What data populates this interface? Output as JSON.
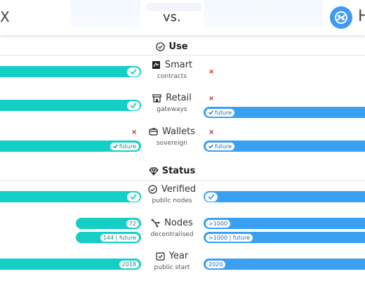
{
  "header": {
    "left_name": "X",
    "vs": "vs.",
    "right_name": "H"
  },
  "sections": {
    "use": "Use",
    "status": "Status"
  },
  "rows": {
    "smart": {
      "title": "Smart",
      "sub": "contracts"
    },
    "retail": {
      "title": "Retail",
      "sub": "gateways",
      "right_pill": "future"
    },
    "wallets": {
      "title": "Wallets",
      "sub": "sovereign",
      "left_pill": "future",
      "right_pill": "future"
    },
    "verified": {
      "title": "Verified",
      "sub": "public nodes"
    },
    "nodes": {
      "title": "Nodes",
      "sub": "decentralised",
      "left_top": "72",
      "left_bottom": "144 | future",
      "right_top": ">1000",
      "right_bottom": ">1000 | future"
    },
    "year": {
      "title": "Year",
      "sub": "public start",
      "left_value": "2018",
      "right_value": "2020"
    }
  },
  "marks": {
    "x": "×"
  },
  "colors": {
    "teal": "#14cfc6",
    "blue": "#3aa0f2",
    "cross": "#c62828"
  }
}
